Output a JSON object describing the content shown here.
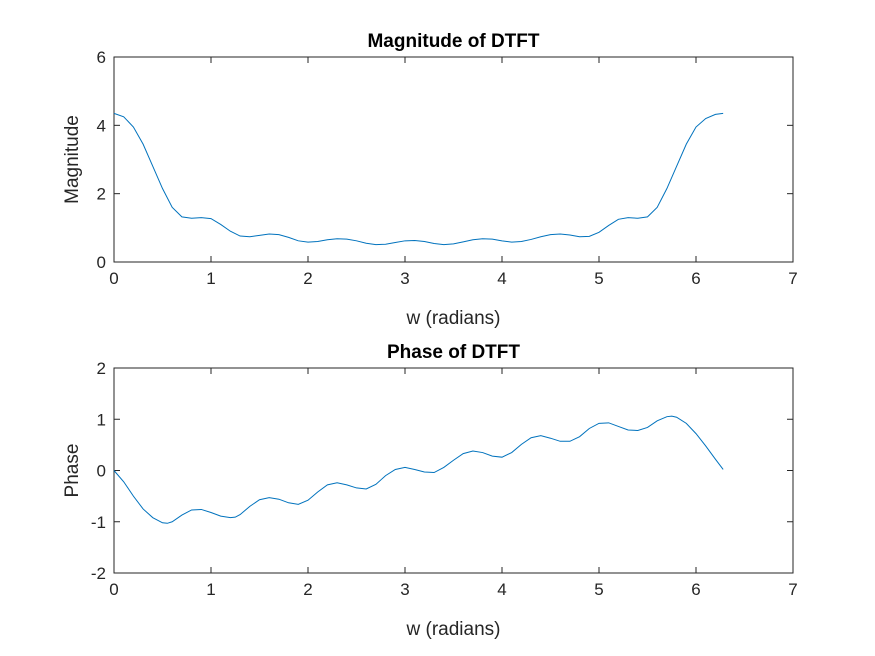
{
  "chart_data": [
    {
      "type": "line",
      "title": "Magnitude of DTFT",
      "xlabel": "w (radians)",
      "ylabel": "Magnitude",
      "xlim": [
        0,
        7
      ],
      "ylim": [
        0,
        6
      ],
      "xticks": [
        "0",
        "1",
        "2",
        "3",
        "4",
        "5",
        "6",
        "7"
      ],
      "yticks": [
        "0",
        "2",
        "4",
        "6"
      ],
      "grid": false,
      "color": "#0072BD",
      "x": [
        0,
        0.1,
        0.2,
        0.3,
        0.4,
        0.5,
        0.6,
        0.7,
        0.8,
        0.9,
        1.0,
        1.1,
        1.2,
        1.3,
        1.4,
        1.5,
        1.6,
        1.7,
        1.8,
        1.9,
        2.0,
        2.1,
        2.2,
        2.3,
        2.4,
        2.5,
        2.6,
        2.7,
        2.8,
        2.9,
        3.0,
        3.1,
        3.2,
        3.3,
        3.4,
        3.5,
        3.6,
        3.7,
        3.8,
        3.9,
        4.0,
        4.1,
        4.2,
        4.3,
        4.4,
        4.5,
        4.6,
        4.7,
        4.8,
        4.9,
        5.0,
        5.1,
        5.2,
        5.3,
        5.4,
        5.5,
        5.6,
        5.7,
        5.8,
        5.9,
        6.0,
        6.1,
        6.2,
        6.28
      ],
      "y": [
        4.35,
        4.25,
        3.95,
        3.45,
        2.8,
        2.15,
        1.6,
        1.32,
        1.28,
        1.3,
        1.27,
        1.1,
        0.9,
        0.76,
        0.74,
        0.78,
        0.82,
        0.8,
        0.72,
        0.62,
        0.58,
        0.6,
        0.65,
        0.68,
        0.67,
        0.62,
        0.55,
        0.51,
        0.52,
        0.57,
        0.62,
        0.63,
        0.6,
        0.54,
        0.51,
        0.53,
        0.59,
        0.65,
        0.68,
        0.67,
        0.62,
        0.58,
        0.6,
        0.66,
        0.74,
        0.8,
        0.82,
        0.79,
        0.74,
        0.75,
        0.87,
        1.07,
        1.25,
        1.3,
        1.28,
        1.32,
        1.6,
        2.15,
        2.8,
        3.45,
        3.95,
        4.2,
        4.32,
        4.35
      ]
    },
    {
      "type": "line",
      "title": "Phase of DTFT",
      "xlabel": "w (radians)",
      "ylabel": "Phase",
      "xlim": [
        0,
        7
      ],
      "ylim": [
        -2,
        2
      ],
      "xticks": [
        "0",
        "1",
        "2",
        "3",
        "4",
        "5",
        "6",
        "7"
      ],
      "yticks": [
        "-2",
        "-1",
        "0",
        "1",
        "2"
      ],
      "grid": false,
      "color": "#0072BD",
      "x": [
        0,
        0.1,
        0.2,
        0.3,
        0.4,
        0.5,
        0.55,
        0.6,
        0.7,
        0.8,
        0.9,
        1.0,
        1.1,
        1.2,
        1.25,
        1.3,
        1.4,
        1.5,
        1.6,
        1.7,
        1.8,
        1.9,
        2.0,
        2.1,
        2.2,
        2.3,
        2.4,
        2.5,
        2.6,
        2.7,
        2.8,
        2.9,
        3.0,
        3.1,
        3.2,
        3.3,
        3.4,
        3.5,
        3.6,
        3.7,
        3.8,
        3.9,
        4.0,
        4.1,
        4.2,
        4.3,
        4.4,
        4.5,
        4.6,
        4.7,
        4.8,
        4.9,
        5.0,
        5.1,
        5.2,
        5.3,
        5.4,
        5.5,
        5.6,
        5.7,
        5.75,
        5.8,
        5.9,
        6.0,
        6.1,
        6.2,
        6.28
      ],
      "y": [
        0.0,
        -0.22,
        -0.5,
        -0.75,
        -0.92,
        -1.02,
        -1.03,
        -1.0,
        -0.87,
        -0.77,
        -0.76,
        -0.82,
        -0.89,
        -0.92,
        -0.91,
        -0.86,
        -0.7,
        -0.57,
        -0.53,
        -0.56,
        -0.63,
        -0.66,
        -0.58,
        -0.42,
        -0.28,
        -0.24,
        -0.28,
        -0.34,
        -0.36,
        -0.27,
        -0.1,
        0.02,
        0.06,
        0.02,
        -0.03,
        -0.04,
        0.06,
        0.2,
        0.33,
        0.38,
        0.35,
        0.28,
        0.26,
        0.35,
        0.51,
        0.64,
        0.68,
        0.63,
        0.57,
        0.57,
        0.66,
        0.82,
        0.92,
        0.93,
        0.86,
        0.79,
        0.78,
        0.84,
        0.97,
        1.05,
        1.06,
        1.04,
        0.92,
        0.72,
        0.48,
        0.22,
        0.02
      ]
    }
  ]
}
